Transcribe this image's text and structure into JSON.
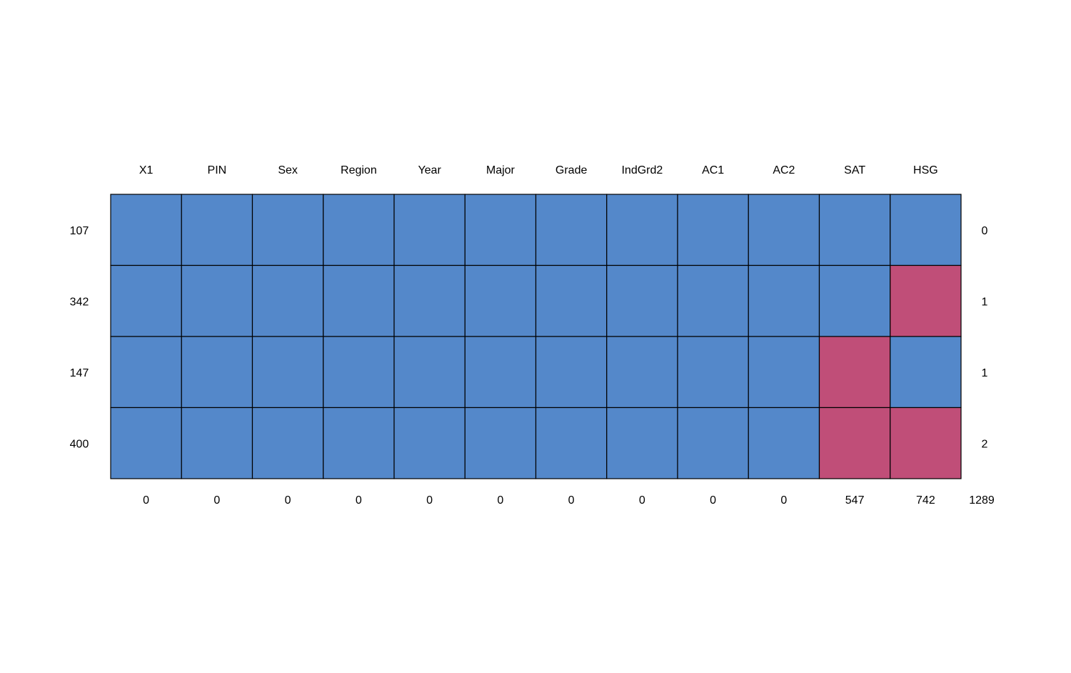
{
  "chart_data": {
    "type": "heatmap",
    "title": "",
    "columns": [
      "X1",
      "PIN",
      "Sex",
      "Region",
      "Year",
      "Major",
      "Grade",
      "IndGrd2",
      "AC1",
      "AC2",
      "SAT",
      "HSG"
    ],
    "rows": [
      {
        "count": "107",
        "missing": [
          0,
          0,
          0,
          0,
          0,
          0,
          0,
          0,
          0,
          0,
          0,
          0
        ],
        "n_missing": "0"
      },
      {
        "count": "342",
        "missing": [
          0,
          0,
          0,
          0,
          0,
          0,
          0,
          0,
          0,
          0,
          0,
          1
        ],
        "n_missing": "1"
      },
      {
        "count": "147",
        "missing": [
          0,
          0,
          0,
          0,
          0,
          0,
          0,
          0,
          0,
          0,
          1,
          0
        ],
        "n_missing": "1"
      },
      {
        "count": "400",
        "missing": [
          0,
          0,
          0,
          0,
          0,
          0,
          0,
          0,
          0,
          0,
          1,
          1
        ],
        "n_missing": "2"
      }
    ],
    "column_missing_totals": [
      "0",
      "0",
      "0",
      "0",
      "0",
      "0",
      "0",
      "0",
      "0",
      "0",
      "547",
      "742"
    ],
    "total_missing": "1289",
    "colors": {
      "observed": "#5488CA",
      "missing": "#C04E78",
      "border": "#000000"
    }
  }
}
